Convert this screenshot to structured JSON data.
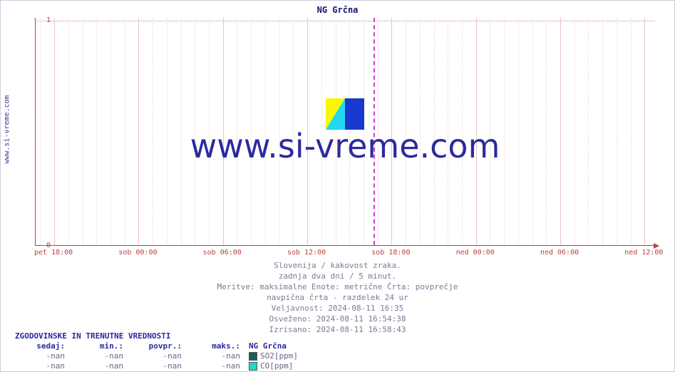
{
  "title": "NG Grčna",
  "sidebar_label": "www.si-vreme.com",
  "watermark_text": "www.si-vreme.com",
  "chart": {
    "type": "line",
    "background_color": "#ffffff",
    "axis_color": "#c04040",
    "minor_grid_color": "#f2d6d6",
    "major_grid_color": "#e8c4c4",
    "marker_color": "#d040d0",
    "ylim": [
      0,
      1
    ],
    "y_ticks": [
      0,
      1
    ],
    "x_labels": [
      "pet 18:00",
      "sob 00:00",
      "sob 06:00",
      "sob 12:00",
      "sob 18:00",
      "ned 00:00",
      "ned 06:00",
      "ned 12:00"
    ],
    "x_major_positions_pct": [
      3.0,
      16.6,
      30.2,
      43.8,
      57.4,
      71.0,
      84.6,
      98.2
    ],
    "minor_per_major": 6,
    "marker_position_pct": 54.5,
    "series": []
  },
  "caption": {
    "line1": "Slovenija / kakovost zraka.",
    "line2": "zadnja dva dni / 5 minut.",
    "line3": "Meritve: maksimalne  Enote: metrične  Črta: povprečje",
    "line4": "navpična črta - razdelek 24 ur",
    "line5": "Veljavnost: 2024-08-11 16:35",
    "line6": "Osveženo: 2024-08-11 16:54:38",
    "line7": "Izrisano: 2024-08-11 16:58:43"
  },
  "legend": {
    "title": "ZGODOVINSKE IN TRENUTNE VREDNOSTI",
    "headers": [
      "sedaj:",
      "min.:",
      "povpr.:",
      "maks.:"
    ],
    "name_header": "NG Grčna",
    "rows": [
      {
        "values": [
          "-nan",
          "-nan",
          "-nan",
          "-nan"
        ],
        "swatch": "#1a5c5c",
        "label": "SO2[ppm]"
      },
      {
        "values": [
          "-nan",
          "-nan",
          "-nan",
          "-nan"
        ],
        "swatch": "#20d8c8",
        "label": "CO[ppm]"
      }
    ]
  },
  "logo_colors": {
    "yellow": "#f8f800",
    "cyan": "#20d8f0",
    "blue": "#1838d0"
  }
}
